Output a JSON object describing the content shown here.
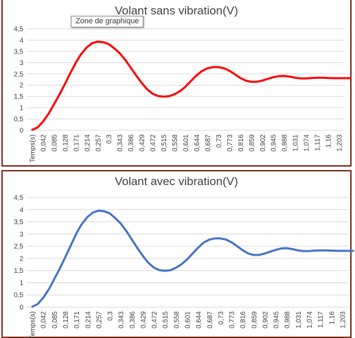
{
  "tooltip": {
    "text": "Zone de graphique"
  },
  "colors": {
    "panel_border": "#7a2a1a",
    "gridline": "#d9d9d9",
    "axis_text": "#404040"
  },
  "chart_data": [
    {
      "type": "line",
      "title": "Volant sans vibration(V)",
      "color": "#ff0000",
      "xlabel": "",
      "ylabel": "",
      "ylim": [
        0,
        4.5
      ],
      "ytick_labels": [
        "0",
        "0,5",
        "1",
        "1,5",
        "2",
        "2,5",
        "3",
        "3,5",
        "4",
        "4,5"
      ],
      "categories": [
        "Temps(s)",
        "0,042",
        "0,085",
        "0,128",
        "0,171",
        "0,214",
        "0,257",
        "0,3",
        "0,343",
        "0,386",
        "0,429",
        "0,472",
        "0,515",
        "0,558",
        "0,601",
        "0,644",
        "0,687",
        "0,73",
        "0,773",
        "0,816",
        "0,859",
        "0,902",
        "0,945",
        "0,988",
        "1,031",
        "1,074",
        "1,117",
        "1,16",
        "1,203"
      ],
      "grid": true,
      "legend": "none",
      "points": [
        [
          0,
          0.02
        ],
        [
          0.02,
          0.12
        ],
        [
          0.042,
          0.38
        ],
        [
          0.065,
          0.75
        ],
        [
          0.085,
          1.15
        ],
        [
          0.105,
          1.55
        ],
        [
          0.128,
          2.05
        ],
        [
          0.15,
          2.55
        ],
        [
          0.171,
          3.0
        ],
        [
          0.19,
          3.35
        ],
        [
          0.214,
          3.68
        ],
        [
          0.235,
          3.86
        ],
        [
          0.257,
          3.93
        ],
        [
          0.28,
          3.9
        ],
        [
          0.3,
          3.82
        ],
        [
          0.32,
          3.65
        ],
        [
          0.343,
          3.42
        ],
        [
          0.365,
          3.12
        ],
        [
          0.386,
          2.78
        ],
        [
          0.408,
          2.42
        ],
        [
          0.429,
          2.1
        ],
        [
          0.45,
          1.82
        ],
        [
          0.472,
          1.62
        ],
        [
          0.493,
          1.52
        ],
        [
          0.515,
          1.49
        ],
        [
          0.537,
          1.51
        ],
        [
          0.558,
          1.6
        ],
        [
          0.58,
          1.74
        ],
        [
          0.601,
          1.93
        ],
        [
          0.622,
          2.18
        ],
        [
          0.644,
          2.43
        ],
        [
          0.665,
          2.62
        ],
        [
          0.687,
          2.75
        ],
        [
          0.71,
          2.8
        ],
        [
          0.73,
          2.8
        ],
        [
          0.752,
          2.75
        ],
        [
          0.773,
          2.64
        ],
        [
          0.795,
          2.48
        ],
        [
          0.816,
          2.32
        ],
        [
          0.838,
          2.2
        ],
        [
          0.859,
          2.15
        ],
        [
          0.88,
          2.15
        ],
        [
          0.902,
          2.2
        ],
        [
          0.924,
          2.28
        ],
        [
          0.945,
          2.35
        ],
        [
          0.967,
          2.4
        ],
        [
          0.988,
          2.41
        ],
        [
          1.01,
          2.38
        ],
        [
          1.031,
          2.33
        ],
        [
          1.052,
          2.3
        ],
        [
          1.074,
          2.3
        ],
        [
          1.095,
          2.32
        ],
        [
          1.117,
          2.33
        ],
        [
          1.14,
          2.33
        ],
        [
          1.16,
          2.32
        ],
        [
          1.182,
          2.31
        ],
        [
          1.203,
          2.31
        ],
        [
          1.23,
          2.31
        ],
        [
          1.245,
          2.31
        ]
      ]
    },
    {
      "type": "line",
      "title": "Volant avec vibration(V)",
      "color": "#4472c4",
      "xlabel": "",
      "ylabel": "",
      "ylim": [
        0,
        4.5
      ],
      "ytick_labels": [
        "0",
        "0,5",
        "1",
        "1,5",
        "2",
        "2,5",
        "3",
        "3,5",
        "4",
        "4,5"
      ],
      "categories": [
        "Temps(s)",
        "0,042",
        "0,085",
        "0,128",
        "0,171",
        "0,214",
        "0,257",
        "0,3",
        "0,343",
        "0,386",
        "0,429",
        "0,472",
        "0,515",
        "0,558",
        "0,601",
        "0,644",
        "0,687",
        "0,73",
        "0,773",
        "0,816",
        "0,859",
        "0,902",
        "0,945",
        "0,988",
        "1,031",
        "1,074",
        "1,117",
        "1,16",
        "1,203"
      ],
      "grid": true,
      "legend": "none",
      "points": [
        [
          0,
          0.02
        ],
        [
          0.02,
          0.12
        ],
        [
          0.042,
          0.38
        ],
        [
          0.065,
          0.75
        ],
        [
          0.085,
          1.15
        ],
        [
          0.105,
          1.55
        ],
        [
          0.128,
          2.05
        ],
        [
          0.15,
          2.55
        ],
        [
          0.171,
          3.02
        ],
        [
          0.19,
          3.38
        ],
        [
          0.214,
          3.7
        ],
        [
          0.235,
          3.88
        ],
        [
          0.257,
          3.96
        ],
        [
          0.28,
          3.93
        ],
        [
          0.3,
          3.85
        ],
        [
          0.32,
          3.67
        ],
        [
          0.343,
          3.43
        ],
        [
          0.365,
          3.12
        ],
        [
          0.386,
          2.78
        ],
        [
          0.408,
          2.42
        ],
        [
          0.429,
          2.1
        ],
        [
          0.45,
          1.82
        ],
        [
          0.472,
          1.62
        ],
        [
          0.493,
          1.52
        ],
        [
          0.515,
          1.49
        ],
        [
          0.537,
          1.52
        ],
        [
          0.558,
          1.62
        ],
        [
          0.58,
          1.77
        ],
        [
          0.601,
          1.96
        ],
        [
          0.622,
          2.2
        ],
        [
          0.644,
          2.45
        ],
        [
          0.665,
          2.65
        ],
        [
          0.687,
          2.77
        ],
        [
          0.71,
          2.82
        ],
        [
          0.73,
          2.82
        ],
        [
          0.752,
          2.77
        ],
        [
          0.773,
          2.66
        ],
        [
          0.795,
          2.5
        ],
        [
          0.816,
          2.34
        ],
        [
          0.838,
          2.2
        ],
        [
          0.859,
          2.14
        ],
        [
          0.88,
          2.14
        ],
        [
          0.902,
          2.2
        ],
        [
          0.924,
          2.28
        ],
        [
          0.945,
          2.35
        ],
        [
          0.967,
          2.41
        ],
        [
          0.988,
          2.42
        ],
        [
          1.01,
          2.38
        ],
        [
          1.031,
          2.33
        ],
        [
          1.052,
          2.3
        ],
        [
          1.074,
          2.3
        ],
        [
          1.095,
          2.32
        ],
        [
          1.117,
          2.33
        ],
        [
          1.14,
          2.33
        ],
        [
          1.16,
          2.32
        ],
        [
          1.182,
          2.31
        ],
        [
          1.203,
          2.31
        ],
        [
          1.23,
          2.31
        ],
        [
          1.245,
          2.31
        ]
      ]
    }
  ]
}
